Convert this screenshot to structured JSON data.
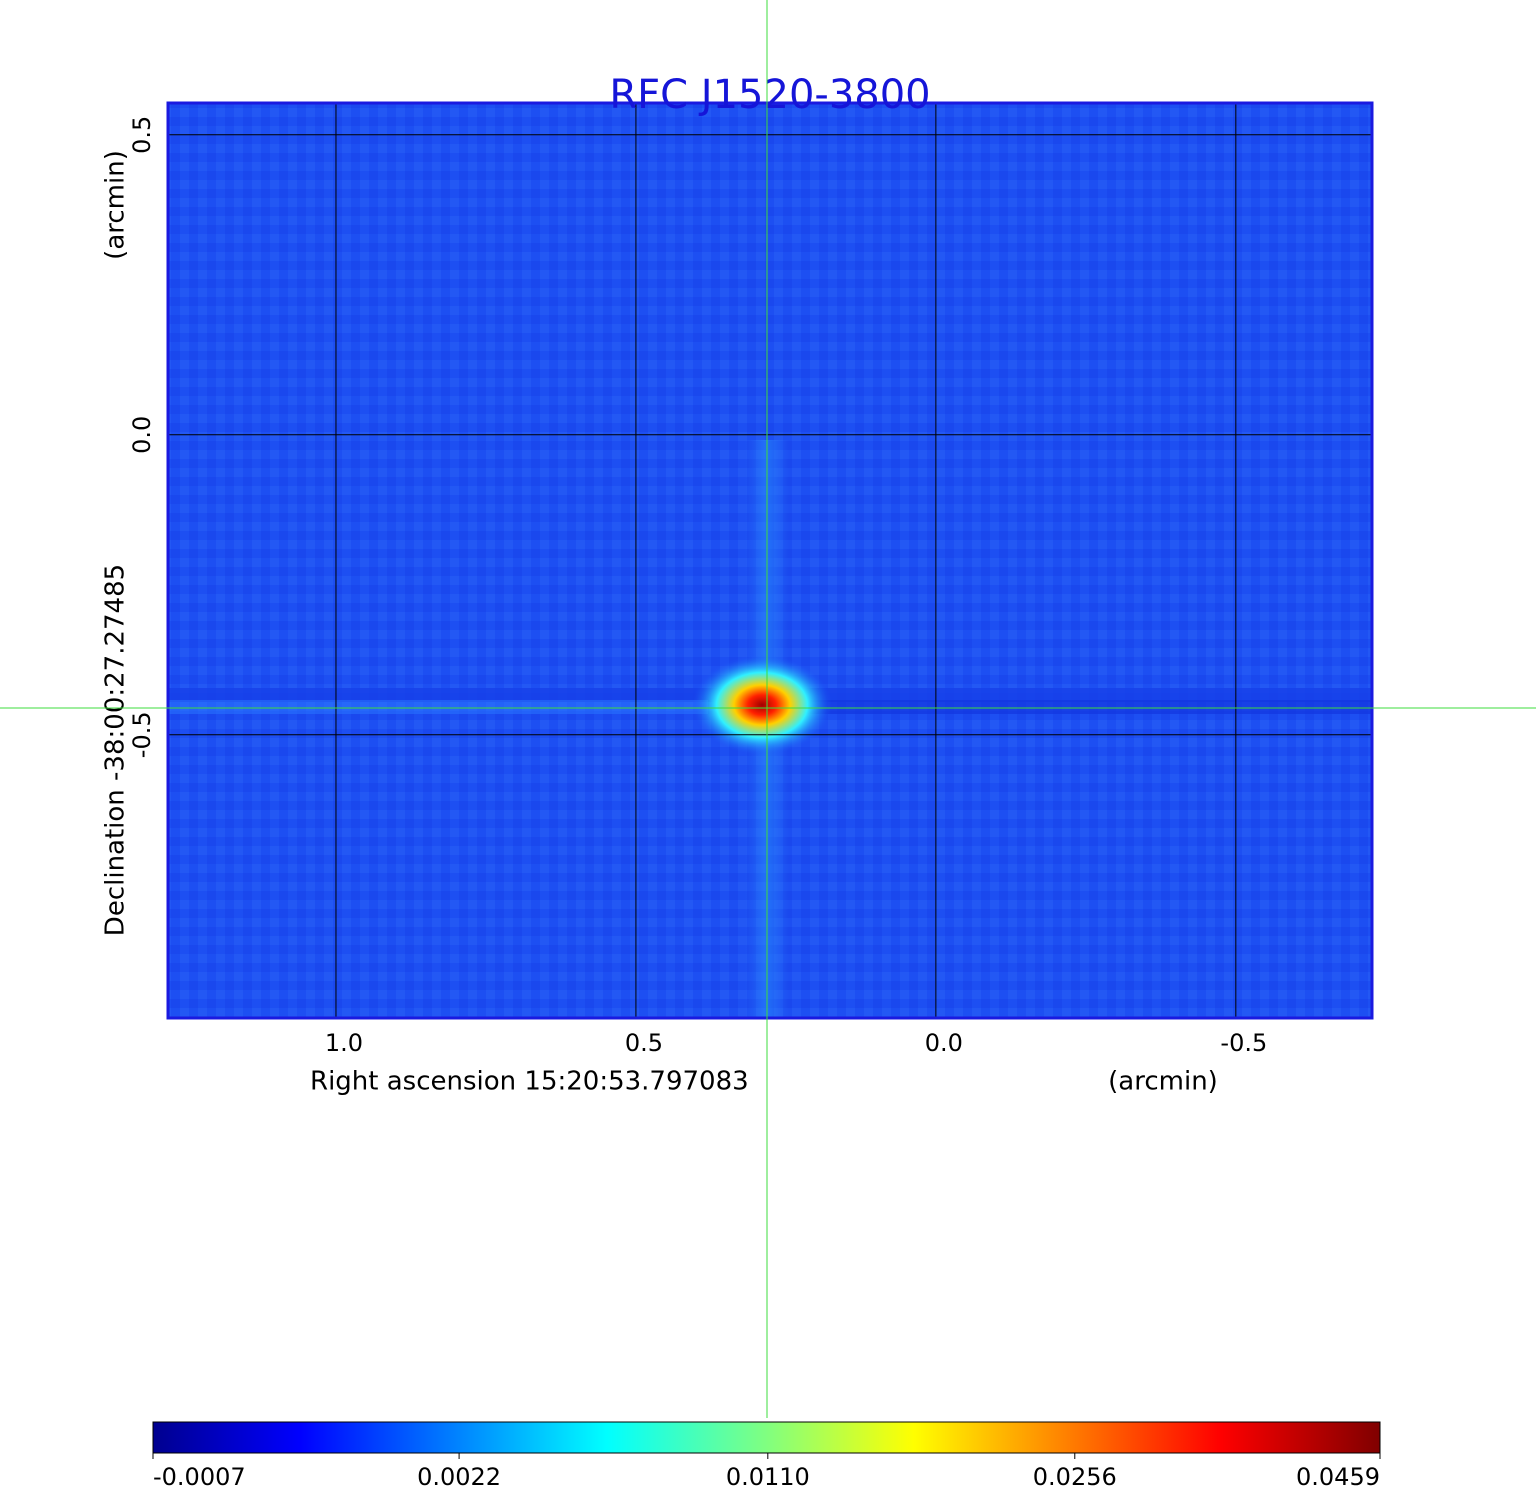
{
  "chart_data": {
    "type": "image",
    "title": "RFC J1520-3800",
    "x_label": "Right ascension  15:20:53.797083",
    "x_unit": "(arcmin)",
    "y_label": "Declination  -38:00:27.27485",
    "y_unit": "(arcmin)",
    "xlim": [
      1.28,
      -0.727
    ],
    "xticks": [
      {
        "value": 1,
        "label": "1.0"
      },
      0.5,
      {
        "value": 0,
        "label": "0.0"
      },
      -0.5
    ],
    "ylim": [
      -0.972,
      0.553
    ],
    "yticks": [
      0.5,
      {
        "value": 0,
        "label": "0.0"
      },
      -0.5
    ],
    "grid": true,
    "colorbar_lim": [
      -0.0007,
      0.0459
    ],
    "colorbar_scale": "sqrt",
    "colorbar_ticks": [
      -0.0007,
      0.0022,
      {
        "value": 0.011,
        "label": "0.0110"
      },
      0.0256,
      0.0459
    ]
  }
}
